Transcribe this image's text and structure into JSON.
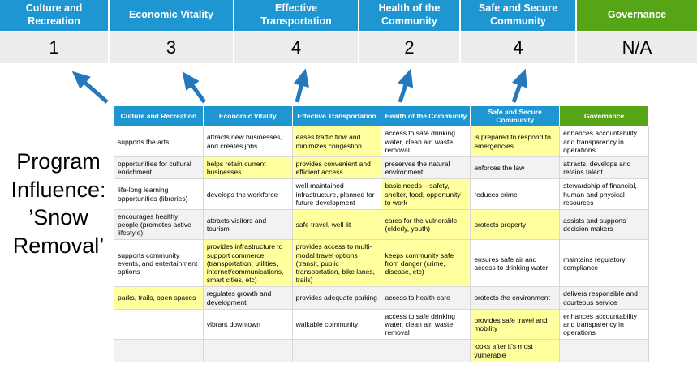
{
  "colors": {
    "pillar_blue": "#1e96d2",
    "governance_green": "#55a516",
    "highlight_yellow": "#ffff9e",
    "arrow_blue": "#2478bd",
    "score_row_bg": "#ececec"
  },
  "scoreboard": {
    "columns": [
      {
        "label": "Culture and Recreation",
        "score": "1"
      },
      {
        "label": "Economic Vitality",
        "score": "3"
      },
      {
        "label": "Effective Transportation",
        "score": "4"
      },
      {
        "label": "Health of the Community",
        "score": "2"
      },
      {
        "label": "Safe and Secure Community",
        "score": "4"
      },
      {
        "label": "Governance",
        "score": "N/A"
      }
    ]
  },
  "program_label": {
    "lines": [
      "Program",
      "Influence:",
      "’Snow",
      "Removal’"
    ]
  },
  "matrix": {
    "headers": [
      "Culture and Recreation",
      "Economic Vitality",
      "Effective Transportation",
      "Health of the Community",
      "Safe and Secure Community",
      "Governance"
    ],
    "rows": [
      [
        {
          "text": "supports the arts",
          "highlight": false
        },
        {
          "text": "attracts new businesses, and creates jobs",
          "highlight": false
        },
        {
          "text": "eases traffic flow and minimizes congestion",
          "highlight": true
        },
        {
          "text": "access to safe drinking water, clean air, waste removal",
          "highlight": false
        },
        {
          "text": "is prepared to respond to emergencies",
          "highlight": true
        },
        {
          "text": "enhances accountability and transparency in operations",
          "highlight": false
        }
      ],
      [
        {
          "text": "opportunities for cultural enrichment",
          "highlight": false
        },
        {
          "text": "helps retain current businesses",
          "highlight": true
        },
        {
          "text": "provides convenient and efficient access",
          "highlight": true
        },
        {
          "text": "preserves the natural environment",
          "highlight": false
        },
        {
          "text": "enforces the law",
          "highlight": false
        },
        {
          "text": "attracts, develops and retains talent",
          "highlight": false
        }
      ],
      [
        {
          "text": "life-long learning opportunities (libraries)",
          "highlight": false
        },
        {
          "text": "develops the workforce",
          "highlight": false
        },
        {
          "text": "well-maintained infrastructure, planned for future development",
          "highlight": false
        },
        {
          "text": "basic needs – safety, shelter, food, opportunity to work",
          "highlight": true
        },
        {
          "text": "reduces crime",
          "highlight": false
        },
        {
          "text": "stewardship of financial, human and physical resources",
          "highlight": false
        }
      ],
      [
        {
          "text": "encourages healthy people (promotes active lifestyle)",
          "highlight": false
        },
        {
          "text": "attracts visitors and tourism",
          "highlight": false
        },
        {
          "text": "safe travel, well-lit",
          "highlight": true
        },
        {
          "text": "cares for the vulnerable (elderly, youth)",
          "highlight": true
        },
        {
          "text": "protects property",
          "highlight": true
        },
        {
          "text": "assists and supports decision makers",
          "highlight": false
        }
      ],
      [
        {
          "text": "supports community events, and entertainment options",
          "highlight": false
        },
        {
          "text": "provides infrastructure to support commerce (transportation, utilities, internet/communications, smart cities, etc)",
          "highlight": true
        },
        {
          "text": "provides access to multi-modal travel options (transit, public transportation, bike lanes, trails)",
          "highlight": true
        },
        {
          "text": "keeps community safe from danger (crime, disease, etc)",
          "highlight": true
        },
        {
          "text": "ensures safe air and access to drinking water",
          "highlight": false
        },
        {
          "text": "maintains regulatory compliance",
          "highlight": false
        }
      ],
      [
        {
          "text": "parks, trails, open spaces",
          "highlight": true
        },
        {
          "text": "regulates growth and development",
          "highlight": false
        },
        {
          "text": "provides adequate parking",
          "highlight": false
        },
        {
          "text": "access to health care",
          "highlight": false
        },
        {
          "text": "protects the environment",
          "highlight": false
        },
        {
          "text": "delivers responsible and courteous service",
          "highlight": false
        }
      ],
      [
        {
          "text": "",
          "highlight": false
        },
        {
          "text": "vibrant downtown",
          "highlight": false
        },
        {
          "text": "walkable community",
          "highlight": false
        },
        {
          "text": "access to safe drinking water, clean air, waste removal",
          "highlight": false
        },
        {
          "text": "provides safe travel and mobility",
          "highlight": true
        },
        {
          "text": "enhances accountability and transparency in operations",
          "highlight": false
        }
      ],
      [
        {
          "text": "",
          "highlight": false
        },
        {
          "text": "",
          "highlight": false
        },
        {
          "text": "",
          "highlight": false
        },
        {
          "text": "",
          "highlight": false
        },
        {
          "text": "looks after it's most vulnerable",
          "highlight": true
        },
        {
          "text": "",
          "highlight": false
        }
      ]
    ]
  }
}
